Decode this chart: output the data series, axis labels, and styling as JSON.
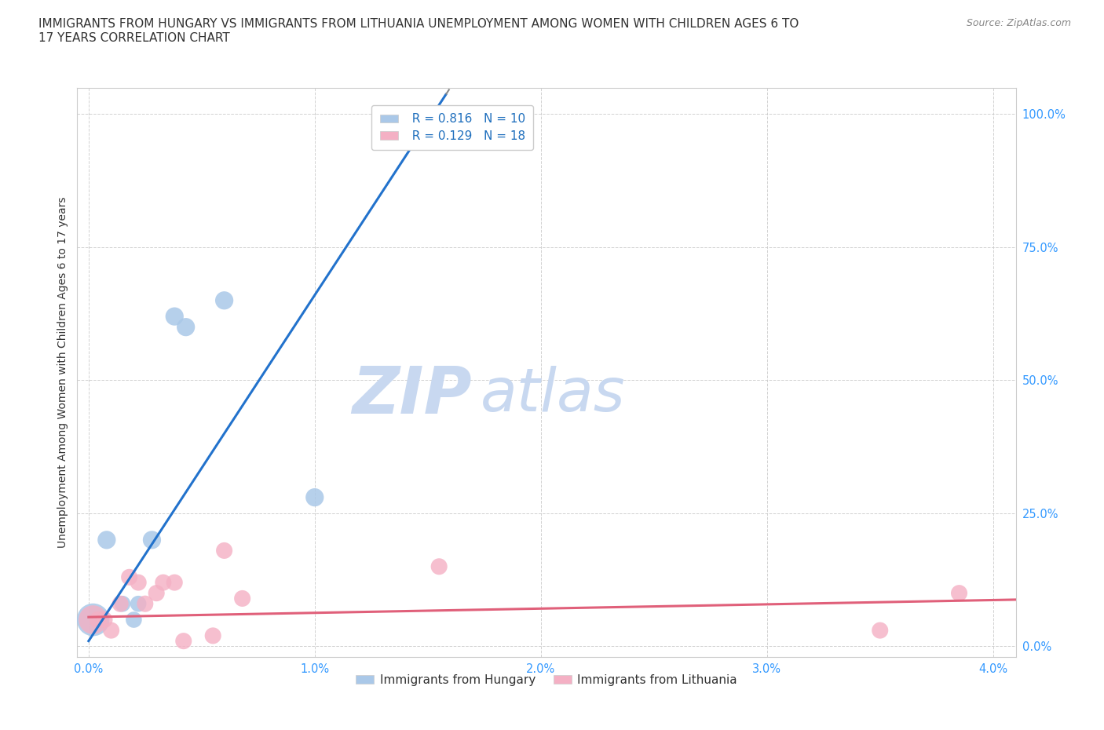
{
  "title": "IMMIGRANTS FROM HUNGARY VS IMMIGRANTS FROM LITHUANIA UNEMPLOYMENT AMONG WOMEN WITH CHILDREN AGES 6 TO\n17 YEARS CORRELATION CHART",
  "source": "Source: ZipAtlas.com",
  "xlabel_vals": [
    0.0,
    1.0,
    2.0,
    3.0,
    4.0
  ],
  "ylabel_vals": [
    0.0,
    25.0,
    50.0,
    75.0,
    100.0
  ],
  "xlim": [
    -0.05,
    4.1
  ],
  "ylim": [
    -2.0,
    105.0
  ],
  "ylabel": "Unemployment Among Women with Children Ages 6 to 17 years",
  "hungary_x": [
    0.02,
    0.08,
    0.15,
    0.2,
    0.22,
    0.28,
    0.38,
    0.43,
    0.6,
    1.0
  ],
  "hungary_y": [
    5.0,
    20.0,
    8.0,
    5.0,
    8.0,
    20.0,
    62.0,
    60.0,
    65.0,
    28.0
  ],
  "hungary_R": 0.816,
  "hungary_N": 10,
  "hungary_color": "#aac8e8",
  "hungary_line_color": "#2272cc",
  "lithuania_x": [
    0.02,
    0.04,
    0.07,
    0.1,
    0.14,
    0.18,
    0.22,
    0.25,
    0.3,
    0.33,
    0.38,
    0.42,
    0.55,
    0.6,
    0.68,
    1.55,
    3.5,
    3.85
  ],
  "lithuania_y": [
    5.0,
    5.0,
    5.0,
    3.0,
    8.0,
    13.0,
    12.0,
    8.0,
    10.0,
    12.0,
    12.0,
    1.0,
    2.0,
    18.0,
    9.0,
    15.0,
    3.0,
    10.0
  ],
  "lithuania_R": 0.129,
  "lithuania_N": 18,
  "lithuania_color": "#f4b0c4",
  "lithuania_line_color": "#e0607a",
  "watermark_zip": "ZIP",
  "watermark_atlas": "atlas",
  "watermark_color": "#ccd8ee",
  "legend_hungary": "Immigrants from Hungary",
  "legend_lithuania": "Immigrants from Lithuania",
  "background_color": "#ffffff",
  "grid_color": "#cccccc",
  "title_fontsize": 11,
  "axis_label_fontsize": 10,
  "tick_fontsize": 10.5,
  "legend_fontsize": 11
}
